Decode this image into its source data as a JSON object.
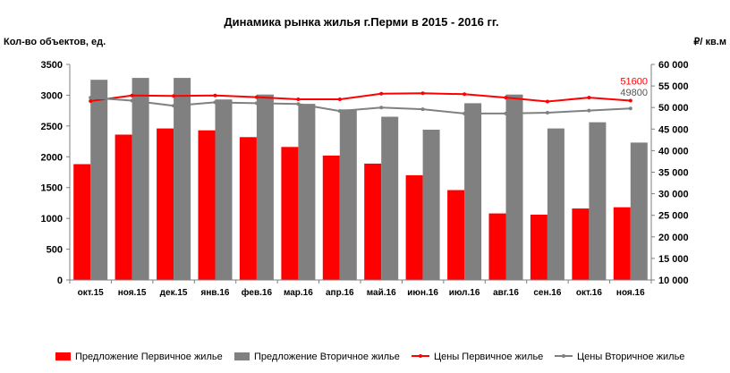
{
  "chart_data": {
    "type": "bar",
    "title": "Динамика рынка жилья г.Перми в 2015 - 2016 гг.",
    "ylabel_left": "Кол-во объектов, ед.",
    "ylabel_right": "₽/ кв.м",
    "ylim_left": [
      0,
      3500
    ],
    "ylim_right": [
      10000,
      60000
    ],
    "yticks_left": [
      "0",
      "500",
      "1000",
      "1500",
      "2000",
      "2500",
      "3000",
      "3500"
    ],
    "yticks_right": [
      "10 000",
      "15 000",
      "20 000",
      "25 000",
      "30 000",
      "35 000",
      "40 000",
      "45 000",
      "50 000",
      "55 000",
      "60 000"
    ],
    "categories": [
      "окт.15",
      "ноя.15",
      "дек.15",
      "янв.16",
      "фев.16",
      "мар.16",
      "апр.16",
      "май.16",
      "июн.16",
      "июл.16",
      "авг.16",
      "сен.16",
      "окт.16",
      "ноя.16"
    ],
    "bar_series": [
      {
        "name": "Предложение Первичное жилье",
        "color": "#ff0000",
        "axis": "left",
        "values": [
          1880,
          2360,
          2460,
          2430,
          2320,
          2160,
          2020,
          1890,
          1700,
          1460,
          1080,
          1060,
          1160,
          1180
        ]
      },
      {
        "name": "Предложение Вторичное жилье",
        "color": "#808080",
        "axis": "left",
        "values": [
          3250,
          3280,
          3280,
          2930,
          3010,
          2860,
          2770,
          2650,
          2440,
          2870,
          3010,
          2460,
          2560,
          2230
        ]
      }
    ],
    "line_series": [
      {
        "name": "Цены Первичное жилье",
        "color": "#ff0000",
        "axis": "right",
        "values": [
          51500,
          52800,
          52700,
          52800,
          52400,
          51900,
          51900,
          53200,
          53300,
          53100,
          52300,
          51400,
          52300,
          51600
        ]
      },
      {
        "name": "Цены Вторичное жилье",
        "color": "#808080",
        "axis": "right",
        "values": [
          52300,
          51600,
          50400,
          51200,
          51000,
          50800,
          49200,
          50000,
          49600,
          48600,
          48600,
          48800,
          49300,
          49800
        ]
      }
    ],
    "data_labels": [
      {
        "series": "Цены Первичное жилье",
        "text": "51600",
        "color": "#ff0000"
      },
      {
        "series": "Цены Вторичное жилье",
        "text": "49800",
        "color": "#555555"
      }
    ],
    "legend_position": "bottom",
    "grid": false
  }
}
